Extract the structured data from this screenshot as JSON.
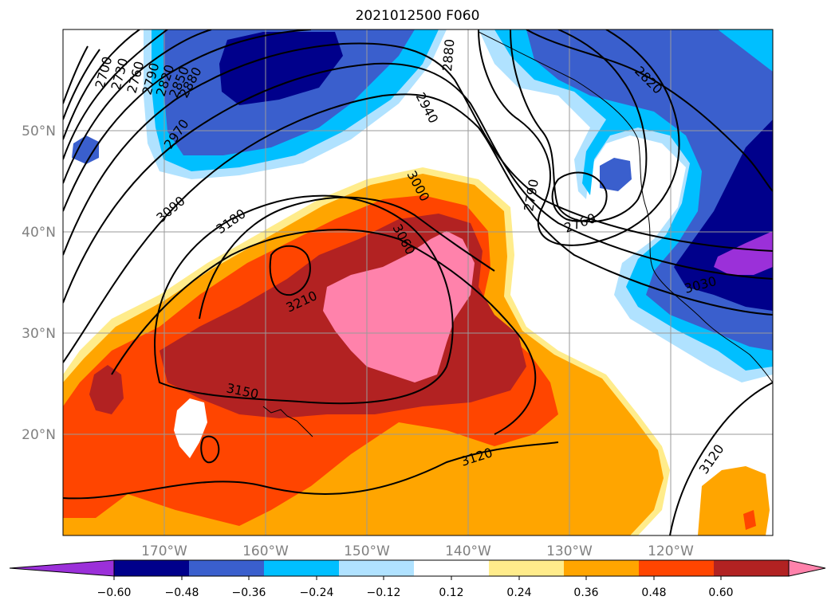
{
  "title": "2021012500 F060",
  "map": {
    "lat_ticks": [
      "50°N",
      "40°N",
      "30°N",
      "20°N"
    ],
    "lon_ticks": [
      "170°W",
      "160°W",
      "150°W",
      "140°W",
      "130°W",
      "120°W"
    ],
    "contour_labels": [
      "2700",
      "2730",
      "2760",
      "2790",
      "2820",
      "2850",
      "2880",
      "2970",
      "3090",
      "3180",
      "3210",
      "3150",
      "3120",
      "3060",
      "3000",
      "2940",
      "2880",
      "2790",
      "2760",
      "2820",
      "3030",
      "3120"
    ]
  },
  "colorbar": {
    "ticks": [
      "−0.60",
      "−0.48",
      "−0.36",
      "−0.24",
      "−0.12",
      "0.12",
      "0.24",
      "0.36",
      "0.48",
      "0.60"
    ],
    "colors": [
      "#9b30d9",
      "#00008b",
      "#3a5fcd",
      "#00bfff",
      "#b0e2ff",
      "#ffffff",
      "#ffec8b",
      "#ffa500",
      "#ff4500",
      "#b22222",
      "#ff82ab"
    ]
  }
}
